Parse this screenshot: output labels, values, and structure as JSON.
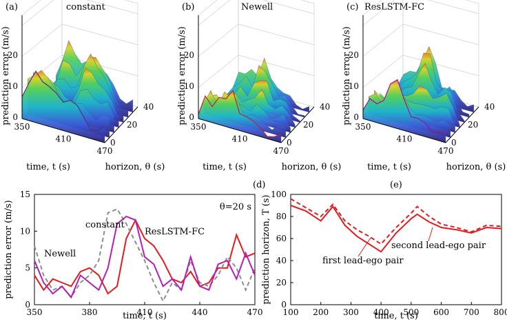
{
  "panels_3d": [
    {
      "letter": "(a)",
      "title": "constant",
      "title_color": "#8c8c8c",
      "zlabel": "prediction error (m/s)",
      "xlabel": "time, t (s)",
      "ylabel": "horizon, θ (s)",
      "z_ticks": [
        "0",
        "10",
        "20"
      ],
      "x_ticks": [
        "350",
        "410",
        "470"
      ],
      "y_ticks": [
        "0",
        "20",
        "40"
      ],
      "edge_color": "#5a2d82",
      "ridge": [
        0.5,
        0.6,
        0.9,
        0.8,
        0.6,
        0.55,
        0.7,
        0.95,
        0.9,
        0.7,
        0.45,
        0.35,
        0.3
      ]
    },
    {
      "letter": "(b)",
      "title": "Newell",
      "title_color": "#e41a1c",
      "zlabel": "prediction error (m/s)",
      "xlabel": "time, t (s)",
      "ylabel": "horizon, θ (s)",
      "z_ticks": [
        "0",
        "10",
        "20"
      ],
      "x_ticks": [
        "350",
        "410",
        "470"
      ],
      "y_ticks": [
        "0",
        "20",
        "40"
      ],
      "edge_color": "#c0203a",
      "ridge": [
        0.1,
        0.35,
        0.3,
        0.55,
        0.4,
        0.6,
        0.45,
        0.5,
        0.35,
        0.3,
        0.2,
        0.15,
        0.1
      ]
    },
    {
      "letter": "(c)",
      "title": "ResLSTM-FC",
      "title_color": "#b51db5",
      "zlabel": "prediction error (m/s)",
      "xlabel": "time, t (s)",
      "ylabel": "horizon, θ (s)",
      "z_ticks": [
        "0",
        "10",
        "20"
      ],
      "x_ticks": [
        "350",
        "410",
        "470"
      ],
      "y_ticks": [
        "0",
        "20",
        "40"
      ],
      "edge_color": "#a0109f",
      "ridge": [
        0.2,
        0.3,
        0.35,
        0.5,
        0.65,
        0.8,
        0.75,
        0.5,
        0.45,
        0.5,
        0.4,
        0.25,
        0.15
      ]
    }
  ],
  "colors": {
    "red": "#e41a1c",
    "gray": "#8c8c8c",
    "magenta": "#b51db5"
  },
  "chart_data": [
    {
      "type": "line",
      "panel": "(d)",
      "annotation": "θ=20 s",
      "xlabel": "time, t (s)",
      "ylabel": "prediction error (m/s)",
      "xlim": [
        350,
        470
      ],
      "ylim": [
        0,
        15
      ],
      "x_ticks": [
        350,
        380,
        410,
        440,
        470
      ],
      "y_ticks": [
        0,
        5,
        10,
        15
      ],
      "series": [
        {
          "name": "Newell",
          "color": "#e41a1c",
          "style": "solid",
          "x": [
            350,
            355,
            360,
            365,
            370,
            375,
            380,
            385,
            390,
            395,
            400,
            405,
            410,
            415,
            420,
            425,
            430,
            435,
            440,
            445,
            450,
            455,
            460,
            465,
            470
          ],
          "y": [
            4,
            2,
            3.5,
            3,
            2.5,
            4.5,
            5,
            4,
            1.5,
            2.5,
            9,
            11.5,
            9,
            8,
            6,
            3.5,
            3,
            4.5,
            2.5,
            3,
            5,
            5,
            9.5,
            6.5,
            7
          ]
        },
        {
          "name": "constant",
          "color": "#8c8c8c",
          "style": "dashed",
          "x": [
            350,
            355,
            360,
            365,
            370,
            375,
            380,
            385,
            390,
            395,
            400,
            405,
            410,
            415,
            420,
            425,
            430,
            435,
            440,
            445,
            450,
            455,
            460,
            465,
            470
          ],
          "y": [
            8,
            4,
            2,
            2.5,
            1,
            3,
            4,
            6,
            12.5,
            13,
            11,
            8.5,
            6,
            3,
            0.5,
            3,
            2,
            6,
            3,
            2.5,
            4,
            6.5,
            5,
            2,
            5
          ]
        },
        {
          "name": "ResLSTM-FC",
          "color": "#b51db5",
          "style": "solid",
          "x": [
            350,
            355,
            360,
            365,
            370,
            375,
            380,
            385,
            390,
            395,
            400,
            405,
            410,
            415,
            420,
            425,
            430,
            435,
            440,
            445,
            450,
            455,
            460,
            465,
            470
          ],
          "y": [
            6,
            3,
            1.5,
            2.5,
            1,
            4,
            3,
            2,
            5,
            11,
            12,
            11.5,
            6.5,
            5.5,
            2.5,
            3.5,
            2,
            6.5,
            2.5,
            2,
            5.5,
            6,
            3.5,
            7,
            4
          ]
        }
      ],
      "labels": {
        "newell": "Newell",
        "constant": "constant",
        "reslstm": "ResLSTM-FC"
      }
    },
    {
      "type": "line",
      "panel": "(e)",
      "xlabel": "time, t (s)",
      "ylabel": "prediction horizon, T (s)",
      "xlim": [
        100,
        800
      ],
      "ylim": [
        0,
        100
      ],
      "x_ticks": [
        100,
        200,
        300,
        400,
        500,
        600,
        700,
        800
      ],
      "y_ticks": [
        0,
        20,
        40,
        60,
        80,
        100
      ],
      "series": [
        {
          "name": "first lead-ego pair",
          "color": "#e41a1c",
          "style": "solid",
          "x": [
            100,
            150,
            200,
            240,
            280,
            320,
            360,
            400,
            450,
            500,
            520,
            560,
            600,
            650,
            700,
            750,
            800
          ],
          "y": [
            90,
            85,
            76,
            89,
            72,
            62,
            55,
            48,
            65,
            78,
            82,
            75,
            70,
            68,
            65,
            70,
            69
          ]
        },
        {
          "name": "second lead-ego pair",
          "color": "#e41a1c",
          "style": "dashed",
          "x": [
            100,
            150,
            200,
            240,
            280,
            320,
            360,
            400,
            450,
            500,
            520,
            560,
            600,
            650,
            700,
            750,
            800
          ],
          "y": [
            96,
            88,
            80,
            91,
            76,
            68,
            62,
            55,
            70,
            83,
            89,
            80,
            73,
            70,
            66,
            72,
            71
          ]
        }
      ],
      "labels": {
        "first": "first lead-ego pair",
        "second": "second lead-ego pair"
      }
    }
  ],
  "panel_letters": {
    "d": "(d)",
    "e": "(e)"
  }
}
